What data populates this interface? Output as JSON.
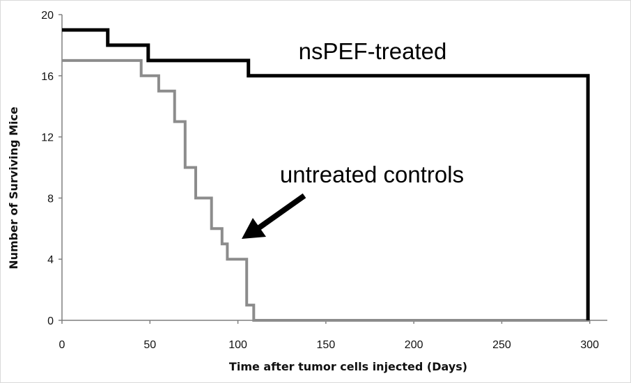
{
  "chart_data": {
    "type": "line",
    "step": true,
    "xlabel": "Time after tumor cells injected (Days)",
    "ylabel": "Number of Surviving Mice",
    "xlim": [
      0,
      310
    ],
    "ylim": [
      0,
      20
    ],
    "xticks": [
      "0",
      "50",
      "100",
      "150",
      "200",
      "250",
      "300"
    ],
    "yticks": [
      "0",
      "4",
      "8",
      "12",
      "16",
      "20"
    ],
    "grid": false,
    "legend": "none",
    "series": [
      {
        "color": "#000000",
        "x": [
          0,
          26,
          26,
          49,
          49,
          106,
          106,
          299,
          299
        ],
        "y": [
          19,
          19,
          18,
          18,
          17,
          17,
          16,
          16,
          0
        ]
      },
      {
        "color": "#8c8c8c",
        "x": [
          0,
          45,
          45,
          55,
          55,
          64,
          64,
          70,
          70,
          76,
          76,
          85,
          85,
          91,
          91,
          94,
          94,
          105,
          105,
          109,
          109,
          300
        ],
        "y": [
          17,
          17,
          16,
          16,
          15,
          15,
          13,
          13,
          10,
          10,
          8,
          8,
          6,
          6,
          5,
          5,
          4,
          4,
          1,
          1,
          0,
          0
        ]
      }
    ],
    "annotations": [
      {
        "id": "treated",
        "text": "nsPEF-treated"
      },
      {
        "id": "controls",
        "text": "untreated controls"
      }
    ]
  }
}
